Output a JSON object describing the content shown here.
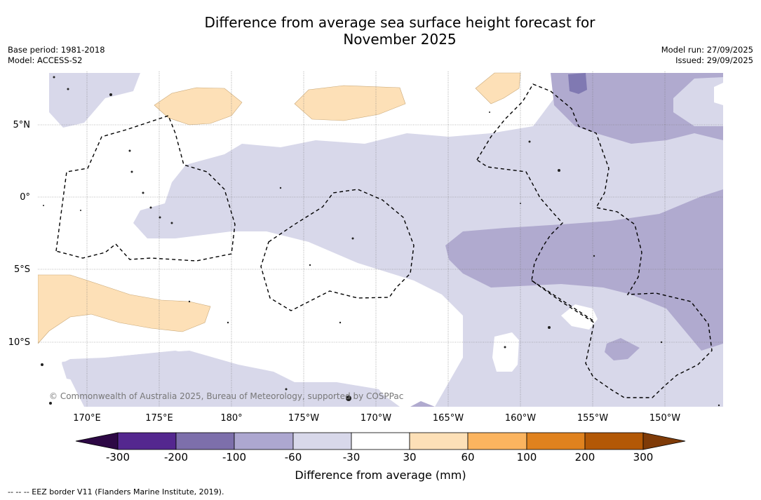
{
  "title": {
    "line1": "Difference from average sea surface height forecast for",
    "line2": "November 2025"
  },
  "meta_left": {
    "base_period": "Base period: 1981-2018",
    "model": "Model: ACCESS-S2"
  },
  "meta_right": {
    "model_run": "Model run: 27/09/2025",
    "issued": "Issued: 29/09/2025"
  },
  "map": {
    "lat_labels": [
      "5°N",
      "0°",
      "5°S",
      "10°S"
    ],
    "lon_labels": [
      "170°E",
      "175°E",
      "180°",
      "175°W",
      "170°W",
      "165°W",
      "160°W",
      "155°W",
      "150°W"
    ],
    "copyright": "© Commonwealth of Australia 2025, Bureau of Meteorology, supported by COSPPac"
  },
  "colorbar": {
    "ticks": [
      "-300",
      "-200",
      "-100",
      "-60",
      "-30",
      "30",
      "60",
      "100",
      "200",
      "300"
    ],
    "colors": [
      "#2d0845",
      "#54278f",
      "#7d6fab",
      "#ada7d0",
      "#d8d8ea",
      "#ffffff",
      "#fde0b7",
      "#fbb45f",
      "#e0821e",
      "#b35806",
      "#7f3b08"
    ],
    "label": "Difference from average (mm)"
  },
  "legend": {
    "eez": "--  --  -- EEZ border V11 (Flanders Marine Institute, 2019)."
  }
}
